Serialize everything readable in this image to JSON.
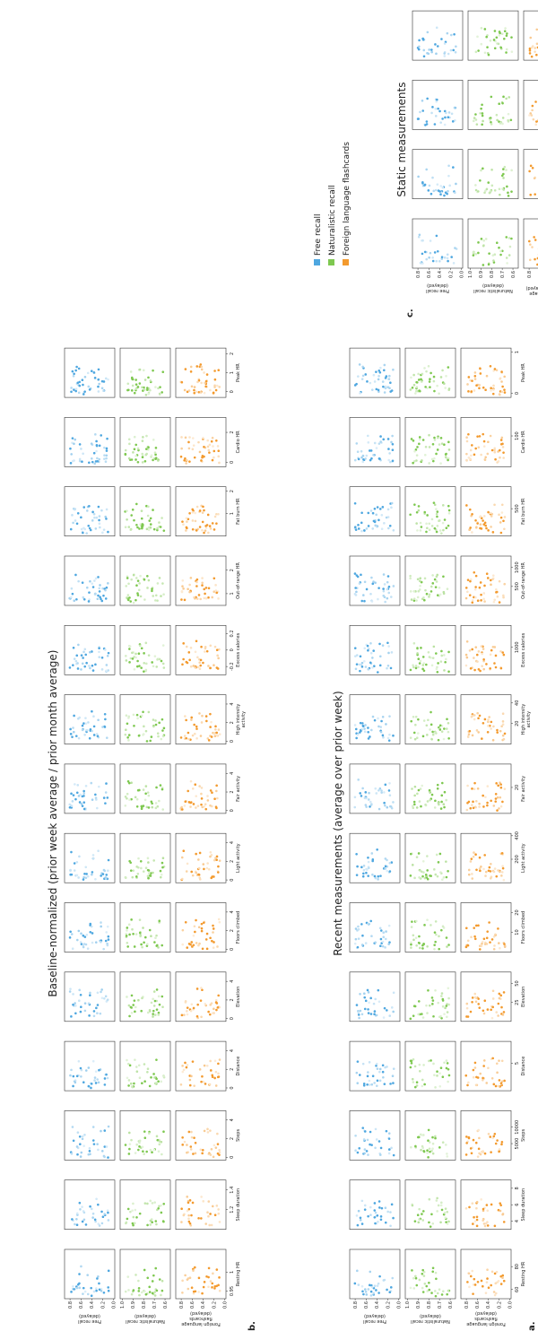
{
  "figure": {
    "panel_a": {
      "letter": "a.",
      "title": "Recent measurements (average over prior week)",
      "row_labels": [
        "Free recall",
        "Naturalistic recall",
        "Foreign language\nflashcards"
      ],
      "columns": [
        {
          "name": "Resting HR",
          "ticks": [
            60,
            80
          ],
          "xlim": [
            52,
            95
          ]
        },
        {
          "name": "Sleep duration",
          "ticks": [
            4,
            6,
            8
          ],
          "xlim": [
            3,
            9
          ]
        },
        {
          "name": "Steps",
          "ticks": [
            5000,
            10000
          ],
          "xlim": [
            0,
            15000
          ]
        },
        {
          "name": "Distance",
          "ticks": [
            5
          ],
          "xlim": [
            0,
            9
          ]
        },
        {
          "name": "Elevation",
          "ticks": [
            25,
            50
          ],
          "xlim": [
            0,
            65
          ]
        },
        {
          "name": "Floors climbed",
          "ticks": [
            10,
            20
          ],
          "xlim": [
            0,
            25
          ]
        },
        {
          "name": "Light activity",
          "ticks": [
            200,
            400
          ],
          "xlim": [
            0,
            420
          ]
        },
        {
          "name": "Fair activity",
          "ticks": [
            20
          ],
          "xlim": [
            0,
            38
          ]
        },
        {
          "name": "High intensity\nactivity",
          "ticks": [
            20,
            40
          ],
          "xlim": [
            0,
            48
          ]
        },
        {
          "name": "Excess calories",
          "ticks": [
            1000
          ],
          "xlim": [
            0,
            1800
          ]
        },
        {
          "name": "Out-of-range HR",
          "ticks": [
            500,
            1000
          ],
          "xlim": [
            0,
            1300
          ]
        },
        {
          "name": "Fat burn HR",
          "ticks": [
            500
          ],
          "xlim": [
            0,
            900
          ]
        },
        {
          "name": "Cardio HR",
          "ticks": [
            100
          ],
          "xlim": [
            0,
            160
          ]
        },
        {
          "name": "Peak HR",
          "ticks": [
            0,
            1
          ],
          "xlim": [
            -0.1,
            1.1
          ]
        }
      ]
    },
    "panel_b": {
      "letter": "b.",
      "title": "Baseline-normalized (prior week average / prior month average)",
      "row_labels": [
        "Free recall",
        "Naturalistic recall",
        "Foreign language\nflashcards"
      ],
      "columns": [
        {
          "name": "Resting HR",
          "ticks": [
            0.95,
            1.0
          ],
          "xlim": [
            0.93,
            1.06
          ]
        },
        {
          "name": "Sleep duration",
          "ticks": [
            1.2,
            1.4
          ],
          "xlim": [
            1.0,
            1.5
          ]
        },
        {
          "name": "Steps",
          "ticks": [
            0,
            2,
            4
          ],
          "xlim": [
            -0.3,
            5
          ]
        },
        {
          "name": "Distance",
          "ticks": [
            0,
            2,
            4
          ],
          "xlim": [
            -0.3,
            5
          ]
        },
        {
          "name": "Elevation",
          "ticks": [
            0,
            2,
            4
          ],
          "xlim": [
            -0.3,
            5
          ]
        },
        {
          "name": "Floors climbed",
          "ticks": [
            0,
            2,
            4
          ],
          "xlim": [
            -0.3,
            5
          ]
        },
        {
          "name": "Light activity",
          "ticks": [
            0,
            2,
            4
          ],
          "xlim": [
            -0.3,
            5
          ]
        },
        {
          "name": "Fair activity",
          "ticks": [
            0,
            2,
            4
          ],
          "xlim": [
            -0.3,
            5
          ]
        },
        {
          "name": "High intensity\nactivity",
          "ticks": [
            0,
            2,
            4
          ],
          "xlim": [
            -0.3,
            5
          ]
        },
        {
          "name": "Excess calories",
          "ticks": [
            -0.2,
            0.0,
            0.2
          ],
          "xlim": [
            -0.3,
            0.3
          ]
        },
        {
          "name": "Out-of-range HR",
          "ticks": [
            1,
            2
          ],
          "xlim": [
            0.5,
            2.6
          ]
        },
        {
          "name": "Fat burn HR",
          "ticks": [
            1,
            2
          ],
          "xlim": [
            0,
            2.2
          ]
        },
        {
          "name": "Cardio HR",
          "ticks": [
            0,
            2
          ],
          "xlim": [
            -0.3,
            3
          ]
        },
        {
          "name": "Peak HR",
          "ticks": [
            0,
            1,
            2
          ],
          "xlim": [
            -0.3,
            2.3
          ]
        }
      ]
    },
    "panel_c": {
      "letter": "c.",
      "title": "Static measurements",
      "row_labels": [
        "Free recall",
        "Naturalistic recall",
        "Foreign language\nflashcards (delayed)"
      ],
      "columns": [
        {
          "name": "BMI",
          "ticks": [
            20,
            40
          ],
          "xlim": [
            15,
            55
          ]
        },
        {
          "name": "Body fat",
          "ticks": [
            20,
            40,
            60
          ],
          "xlim": [
            15,
            70
          ]
        },
        {
          "name": "Weight",
          "ticks": [
            50,
            100,
            150
          ],
          "xlim": [
            40,
            170
          ]
        },
        {
          "name": "HR variability",
          "ticks": [
            10,
            20
          ],
          "xlim": [
            0,
            25
          ]
        }
      ]
    },
    "y_axes": [
      {
        "ylim": [
          -0.02,
          0.9
        ],
        "ticks": [
          0.0,
          0.2,
          0.4,
          0.6,
          0.8
        ],
        "color": "#4ea7e0"
      },
      {
        "ylim": [
          0.55,
          1.02
        ],
        "ticks": [
          0.6,
          0.7,
          0.8,
          0.9,
          1.0
        ],
        "color": "#7ec850"
      },
      {
        "ylim": [
          -0.02,
          0.9
        ],
        "ticks": [
          0.0,
          0.2,
          0.4,
          0.6,
          0.8
        ],
        "color": "#f39a2e"
      }
    ],
    "legend": {
      "placement": "center",
      "items": [
        {
          "label": "Free recall",
          "color": "#4ea7e0"
        },
        {
          "label": "Naturalistic recall",
          "color": "#7ec850"
        },
        {
          "label": "Foreign language flashcards",
          "color": "#f39a2e"
        }
      ]
    }
  },
  "chart_data": {
    "type": "scatter",
    "grid": false,
    "description_rows": [
      "Free recall",
      "Naturalistic recall",
      "Foreign language flashcards"
    ],
    "note": "Each panel plots recall accuracy (y) against a fitness measurement (x); points cluster near the low end of each x-range."
  }
}
